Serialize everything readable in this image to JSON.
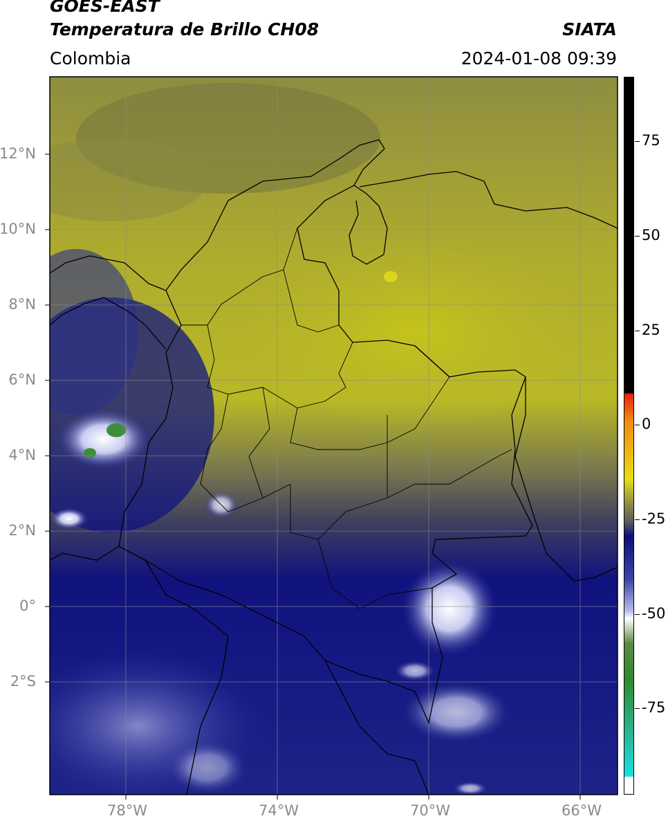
{
  "header": {
    "title_line1": "GOES-EAST",
    "title_line2": "Temperatura de Brillo CH08",
    "organization": "SIATA",
    "region": "Colombia",
    "timestamp": "2024-01-08 09:39"
  },
  "map": {
    "latitude_labels": [
      "12°N",
      "10°N",
      "8°N",
      "6°N",
      "4°N",
      "2°N",
      "0°",
      "2°S"
    ],
    "longitude_labels": [
      "78°W",
      "74°W",
      "70°W",
      "66°W"
    ],
    "gridline_color": "#8c8c8c",
    "border_color": "#000000"
  },
  "colorbar": {
    "tick_labels": [
      "75",
      "50",
      "25",
      "0",
      "-25",
      "-50",
      "-75"
    ],
    "colors": {
      "top": "#000000",
      "warm_red": "#e8250f",
      "orange": "#f28c10",
      "yellow": "#e6df12",
      "olive": "#8f8d48",
      "gray": "#5c5c5c",
      "navy": "#0d0f7a",
      "blue": "#3c45a6",
      "lavender": "#b9bde8",
      "white": "#ffffff",
      "green": "#2f8a2f",
      "teal": "#2ab89a",
      "cyan": "#18e0e0"
    }
  }
}
